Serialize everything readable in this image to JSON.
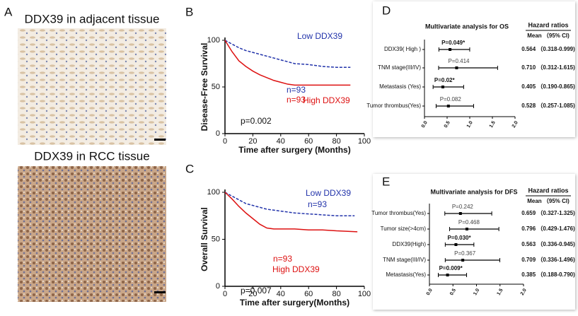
{
  "panel_labels": [
    "A",
    "B",
    "C",
    "D",
    "E"
  ],
  "images": [
    {
      "title": "DDX39 in adjacent tissue"
    },
    {
      "title": "DDX39 in RCC tissue"
    }
  ],
  "chart_data": [
    {
      "type": "line",
      "xlabel": "Time after surgery (Months)",
      "ylabel": "Disease-Free Survival",
      "xlim": [
        0,
        100
      ],
      "xticks": [
        0,
        20,
        40,
        60,
        80,
        100
      ],
      "ylim": [
        0,
        100
      ],
      "yticks": [
        0,
        50,
        100
      ],
      "annotations": [
        "n=93",
        "n=93",
        "p=0.002"
      ],
      "series": [
        {
          "name": "Low DDX39",
          "color": "#2233aa",
          "dash": true,
          "x": [
            0,
            5,
            10,
            15,
            20,
            25,
            30,
            35,
            40,
            45,
            50,
            60,
            70,
            80,
            90
          ],
          "values": [
            100,
            96,
            92,
            89,
            87,
            85,
            83,
            81,
            79,
            77,
            75,
            74,
            72,
            71,
            71
          ]
        },
        {
          "name": "High DDX39",
          "color": "#dd1111",
          "dash": false,
          "x": [
            0,
            5,
            10,
            15,
            20,
            25,
            30,
            35,
            40,
            45,
            50,
            60,
            70,
            80,
            90
          ],
          "values": [
            100,
            88,
            78,
            72,
            67,
            63,
            60,
            57,
            55,
            53,
            52,
            52,
            52,
            52,
            52
          ]
        }
      ]
    },
    {
      "type": "line",
      "xlabel": "Time after surgery(Months)",
      "ylabel": "Overall Survival",
      "xlim": [
        0,
        100
      ],
      "xticks": [
        0,
        20,
        40,
        60,
        80,
        100
      ],
      "ylim": [
        0,
        100
      ],
      "yticks": [
        0,
        50,
        100
      ],
      "annotations": [
        "n=93",
        "n=93",
        "p=0.007"
      ],
      "series": [
        {
          "name": "Low DDX39",
          "color": "#2233aa",
          "dash": true,
          "x": [
            0,
            5,
            10,
            15,
            20,
            25,
            30,
            35,
            40,
            45,
            50,
            60,
            70,
            80,
            93
          ],
          "values": [
            100,
            96,
            92,
            88,
            86,
            84,
            82,
            81,
            80,
            79,
            78,
            77,
            76,
            75,
            75
          ]
        },
        {
          "name": "High DDX39",
          "color": "#dd1111",
          "dash": false,
          "x": [
            0,
            5,
            10,
            15,
            20,
            25,
            30,
            35,
            40,
            45,
            50,
            60,
            70,
            80,
            95
          ],
          "values": [
            100,
            93,
            85,
            78,
            72,
            66,
            62,
            61,
            61,
            61,
            61,
            60,
            60,
            59,
            58
          ]
        }
      ]
    },
    {
      "type": "forest",
      "title": "Multivariate analysis for OS",
      "header": "Hazard ratios",
      "subheader": "Mean （95% CI)",
      "xlim": [
        0,
        2
      ],
      "xticks": [
        {
          "value": 0,
          "label": "0.0"
        },
        {
          "value": 0.5,
          "label": "0.5"
        },
        {
          "value": 1,
          "label": "1.0"
        },
        {
          "value": 1.5,
          "label": "1.5"
        },
        {
          "value": 2,
          "label": "2.0"
        }
      ],
      "categories": [
        "DDX39( High )",
        "TNM stage(III/IV)",
        "Metastasis (Yes)",
        "Tumor thrombus(Yes)"
      ],
      "p_labels": [
        "P=0.049*",
        "P=0.414",
        "P=0.02*",
        "P=0.082"
      ],
      "values": [
        0.564,
        0.71,
        0.405,
        0.528
      ],
      "lower": [
        0.318,
        0.312,
        0.19,
        0.257
      ],
      "upper": [
        0.999,
        1.615,
        0.865,
        1.085
      ],
      "ci_labels": [
        "0.564 （0.318-0.999)",
        "0.710 （0.312-1.615)",
        "0.405 （0.190-0.865)",
        "0.528 （0.257-1.085)"
      ]
    },
    {
      "type": "forest",
      "title": "Multivariate analysis for DFS",
      "header": "Hazard ratios",
      "subheader": "Mean （95% CI)",
      "xlim": [
        0,
        2
      ],
      "xticks": [
        {
          "value": 0,
          "label": "0.0"
        },
        {
          "value": 0.5,
          "label": "0.5"
        },
        {
          "value": 1,
          "label": "1.0"
        },
        {
          "value": 1.5,
          "label": "1.5"
        },
        {
          "value": 2,
          "label": "2.0"
        }
      ],
      "categories": [
        "Tumor thrombus(Yes)",
        "Tumor size(>4cm)",
        "DDX39(High)",
        "TNM stage(III/IV)",
        "Metastasis(Yes)"
      ],
      "p_labels": [
        "P=0.242",
        "P=0.468",
        "P=0.030*",
        "P=0.367",
        "P=0.009*"
      ],
      "values": [
        0.659,
        0.796,
        0.563,
        0.709,
        0.385
      ],
      "lower": [
        0.327,
        0.429,
        0.336,
        0.336,
        0.188
      ],
      "upper": [
        1.325,
        1.476,
        0.945,
        1.496,
        0.79
      ],
      "ci_labels": [
        "0.659 （0.327-1.325)",
        "0.796 （0.429-1.476)",
        "0.563 （0.336-0.945)",
        "0.709 （0.336-1.496)",
        "0.385 （0.188-0.790)"
      ]
    }
  ]
}
